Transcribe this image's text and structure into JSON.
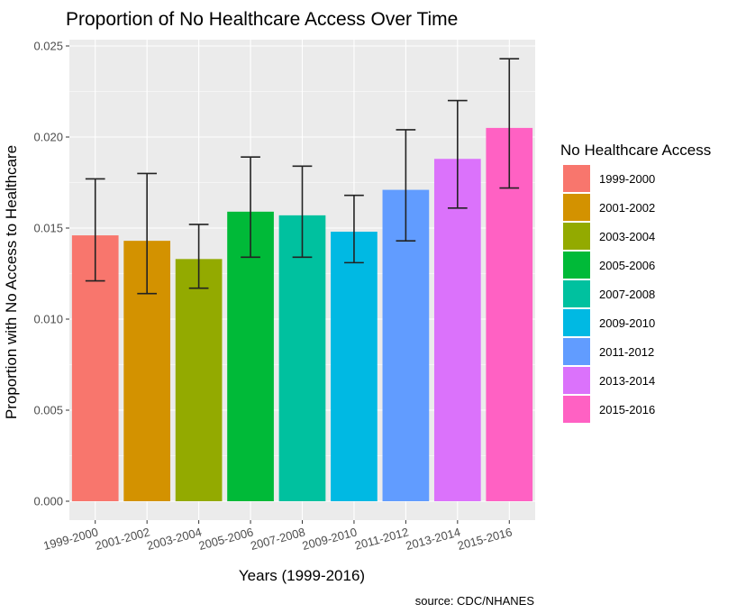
{
  "chart_data": {
    "type": "bar",
    "title": "Proportion of No Healthcare Access Over Time",
    "xlabel": "Years (1999-2016)",
    "ylabel": "Proportion with No Access to Healthcare",
    "caption": "source: CDC/NHANES",
    "ylim": [
      0,
      0.025
    ],
    "yticks": [
      "0.000",
      "0.005",
      "0.010",
      "0.015",
      "0.020",
      "0.025"
    ],
    "grid": true,
    "legend": {
      "title": "No Healthcare Access",
      "position": "right"
    },
    "categories": [
      "1999-2000",
      "2001-2002",
      "2003-2004",
      "2005-2006",
      "2007-2008",
      "2009-2010",
      "2011-2012",
      "2013-2014",
      "2015-2016"
    ],
    "values": [
      0.0146,
      0.0143,
      0.0133,
      0.0159,
      0.0157,
      0.0148,
      0.0171,
      0.0188,
      0.0205
    ],
    "error_low": [
      0.0121,
      0.0114,
      0.0117,
      0.0134,
      0.0134,
      0.0131,
      0.0143,
      0.0161,
      0.0172
    ],
    "error_high": [
      0.0177,
      0.018,
      0.0152,
      0.0189,
      0.0184,
      0.0168,
      0.0204,
      0.022,
      0.0243
    ],
    "colors": [
      "#F8766D",
      "#D39200",
      "#93AA00",
      "#00BA38",
      "#00C19F",
      "#00B9E3",
      "#619CFF",
      "#DB72FB",
      "#FF61C3"
    ]
  }
}
